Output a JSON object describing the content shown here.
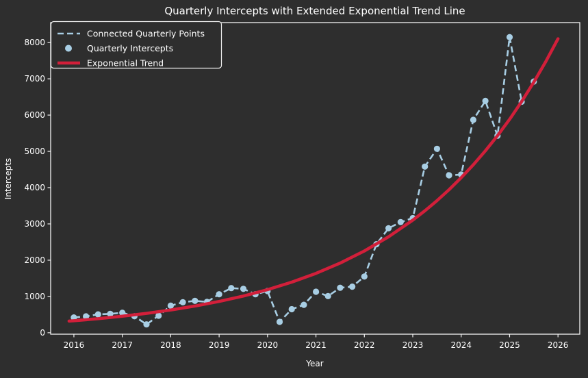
{
  "figure": {
    "title": "Quarterly Intercepts with Extended Exponential Trend Line",
    "xlabel": "Year",
    "ylabel": "Intercepts"
  },
  "colors": {
    "background": "#2e2e2e",
    "text": "#ffffff",
    "axis": "#f2f2f2",
    "points": "#a8cee4",
    "trend": "#d21f3a"
  },
  "legend": {
    "items": [
      {
        "label": "Connected Quarterly Points",
        "swatch": "dashed-line"
      },
      {
        "label": "Quarterly Intercepts",
        "swatch": "round-marker"
      },
      {
        "label": "Exponential Trend",
        "swatch": "thick-line"
      }
    ]
  },
  "chart_data": {
    "type": "line",
    "title": "Quarterly Intercepts with Extended Exponential Trend Line",
    "xlabel": "Year",
    "ylabel": "Intercepts",
    "xlim": [
      2015.52,
      2026.45
    ],
    "ylim": [
      -40,
      8550
    ],
    "x_ticks": [
      2016,
      2017,
      2018,
      2019,
      2020,
      2021,
      2022,
      2023,
      2024,
      2025,
      2026
    ],
    "y_ticks": [
      0,
      1000,
      2000,
      3000,
      4000,
      5000,
      6000,
      7000,
      8000
    ],
    "grid": false,
    "legend_position": "upper-left",
    "x_quarterly": [
      2016.0,
      2016.25,
      2016.5,
      2016.75,
      2017.0,
      2017.25,
      2017.5,
      2017.75,
      2018.0,
      2018.25,
      2018.5,
      2018.75,
      2019.0,
      2019.25,
      2019.5,
      2019.75,
      2020.0,
      2020.25,
      2020.5,
      2020.75,
      2021.0,
      2021.25,
      2021.5,
      2021.75,
      2022.0,
      2022.25,
      2022.5,
      2022.75,
      2023.0,
      2023.25,
      2023.5,
      2023.75,
      2024.0,
      2024.25,
      2024.5,
      2024.75,
      2025.0,
      2025.25,
      2025.5
    ],
    "series": [
      {
        "name": "Connected Quarterly Points",
        "style": "dashed-line",
        "values": [
          420,
          450,
          505,
          520,
          550,
          455,
          230,
          470,
          745,
          840,
          880,
          850,
          1060,
          1230,
          1210,
          1060,
          1150,
          300,
          650,
          770,
          1130,
          1010,
          1240,
          1270,
          1550,
          2440,
          2880,
          3050,
          3160,
          4580,
          5070,
          4340,
          4360,
          5870,
          6390,
          5430,
          8150,
          6370,
          6925
        ]
      },
      {
        "name": "Quarterly Intercepts",
        "style": "scatter-markers",
        "values": [
          420,
          450,
          505,
          520,
          550,
          455,
          230,
          470,
          745,
          840,
          880,
          850,
          1060,
          1230,
          1210,
          1060,
          1150,
          300,
          650,
          770,
          1130,
          1010,
          1240,
          1270,
          1550,
          2440,
          2880,
          3050,
          3160,
          4580,
          5070,
          4340,
          4360,
          5870,
          6390,
          5430,
          8150,
          6370,
          6925
        ]
      },
      {
        "name": "Exponential Trend",
        "style": "solid-line",
        "x": [
          2015.9,
          2016.0,
          2016.5,
          2017.0,
          2017.5,
          2018.0,
          2018.5,
          2019.0,
          2019.5,
          2020.0,
          2020.5,
          2021.0,
          2021.5,
          2022.0,
          2022.5,
          2023.0,
          2023.25,
          2023.5,
          2023.75,
          2024.0,
          2024.25,
          2024.5,
          2024.75,
          2025.0,
          2025.25,
          2025.5,
          2025.75,
          2026.0
        ],
        "values": [
          320,
          330,
          387,
          455,
          533,
          626,
          735,
          862,
          1012,
          1188,
          1394,
          1636,
          1919,
          2253,
          2644,
          3103,
          3362,
          3641,
          3944,
          4273,
          4629,
          5015,
          5433,
          5885,
          6375,
          6907,
          7482,
          8105
        ]
      }
    ]
  }
}
